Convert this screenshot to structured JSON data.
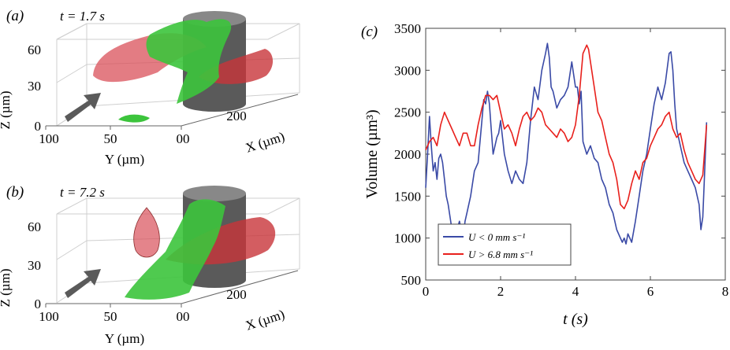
{
  "panel_a": {
    "label": "(a)",
    "time": "t = 1.7 s"
  },
  "panel_b": {
    "label": "(b)",
    "time": "t = 7.2 s"
  },
  "panel_c": {
    "label": "(c)"
  },
  "axes3d": {
    "z_label": "Z (µm)",
    "y_label": "Y (µm)",
    "x_label": "X (µm)",
    "z_ticks": [
      "0",
      "30",
      "60"
    ],
    "y_ticks": [
      "100",
      "50",
      "00"
    ],
    "x_ticks": [
      "200"
    ]
  },
  "colors": {
    "blue": "#3a4aa6",
    "red": "#e8201c",
    "green": "#3cc43c",
    "red_surface": "#d9505a",
    "cylinder": "#555555"
  },
  "chart_data": {
    "type": "line",
    "xlabel": "t (s)",
    "ylabel": "Volume (µm³)",
    "xlim": [
      0,
      8
    ],
    "ylim": [
      500,
      3500
    ],
    "xticks": [
      0,
      2,
      4,
      6,
      8
    ],
    "yticks": [
      500,
      1000,
      1500,
      2000,
      2500,
      3000,
      3500
    ],
    "legend_position": "bottom-left",
    "series": [
      {
        "name": "U < 0 mm s⁻¹",
        "color": "#3a4aa6",
        "x": [
          0,
          0.05,
          0.1,
          0.15,
          0.2,
          0.25,
          0.3,
          0.35,
          0.4,
          0.45,
          0.5,
          0.55,
          0.6,
          0.7,
          0.8,
          0.9,
          1.0,
          1.05,
          1.1,
          1.2,
          1.3,
          1.4,
          1.5,
          1.55,
          1.6,
          1.65,
          1.7,
          1.75,
          1.8,
          1.85,
          1.9,
          1.95,
          2.0,
          2.1,
          2.2,
          2.3,
          2.4,
          2.5,
          2.6,
          2.7,
          2.8,
          2.9,
          3.0,
          3.1,
          3.2,
          3.25,
          3.3,
          3.35,
          3.4,
          3.5,
          3.6,
          3.7,
          3.8,
          3.9,
          4.0,
          4.05,
          4.1,
          4.15,
          4.2,
          4.3,
          4.4,
          4.5,
          4.6,
          4.7,
          4.8,
          4.9,
          5.0,
          5.1,
          5.2,
          5.25,
          5.3,
          5.35,
          5.4,
          5.5,
          5.6,
          5.7,
          5.8,
          5.9,
          6.0,
          6.1,
          6.2,
          6.3,
          6.4,
          6.5,
          6.55,
          6.6,
          6.65,
          6.7,
          6.8,
          6.9,
          7.0,
          7.1,
          7.2,
          7.3,
          7.35,
          7.4,
          7.45,
          7.5
        ],
        "y": [
          1600,
          2000,
          2450,
          2100,
          1800,
          1900,
          1700,
          1950,
          2000,
          1900,
          1700,
          1500,
          1400,
          1100,
          1050,
          1200,
          1000,
          1200,
          1300,
          1500,
          1800,
          1900,
          2400,
          2650,
          2600,
          2750,
          2600,
          2300,
          2000,
          2100,
          2200,
          2250,
          2400,
          2000,
          1800,
          1650,
          1800,
          1700,
          1650,
          1900,
          2400,
          2800,
          2650,
          3000,
          3200,
          3320,
          3150,
          2800,
          2750,
          2550,
          2650,
          2700,
          2800,
          3100,
          2800,
          2800,
          2600,
          2750,
          2150,
          2000,
          2100,
          1950,
          1900,
          1700,
          1600,
          1400,
          1300,
          1100,
          1000,
          950,
          1000,
          930,
          1050,
          950,
          1200,
          1500,
          1800,
          2000,
          2300,
          2600,
          2800,
          2650,
          2850,
          3200,
          3220,
          3000,
          2600,
          2300,
          2100,
          1900,
          1800,
          1700,
          1600,
          1400,
          1100,
          1250,
          1800,
          2380
        ]
      },
      {
        "name": "U > 6.8 mm s⁻¹",
        "color": "#e8201c",
        "x": [
          0,
          0.1,
          0.2,
          0.3,
          0.4,
          0.5,
          0.6,
          0.7,
          0.8,
          0.9,
          1.0,
          1.1,
          1.2,
          1.3,
          1.4,
          1.5,
          1.6,
          1.7,
          1.8,
          1.9,
          2.0,
          2.1,
          2.2,
          2.3,
          2.4,
          2.5,
          2.6,
          2.7,
          2.8,
          2.9,
          3.0,
          3.1,
          3.2,
          3.3,
          3.4,
          3.5,
          3.6,
          3.7,
          3.8,
          3.9,
          4.0,
          4.1,
          4.2,
          4.3,
          4.35,
          4.4,
          4.5,
          4.6,
          4.7,
          4.8,
          4.9,
          5.0,
          5.1,
          5.2,
          5.3,
          5.4,
          5.5,
          5.6,
          5.7,
          5.8,
          5.9,
          6.0,
          6.1,
          6.2,
          6.3,
          6.4,
          6.5,
          6.6,
          6.7,
          6.8,
          6.9,
          7.0,
          7.1,
          7.2,
          7.3,
          7.4,
          7.5
        ],
        "y": [
          2050,
          2150,
          2200,
          2100,
          2350,
          2500,
          2400,
          2300,
          2200,
          2100,
          2250,
          2250,
          2100,
          2100,
          2350,
          2550,
          2700,
          2700,
          2650,
          2700,
          2500,
          2300,
          2350,
          2250,
          2100,
          2300,
          2450,
          2500,
          2400,
          2450,
          2550,
          2500,
          2350,
          2300,
          2250,
          2200,
          2300,
          2250,
          2150,
          2200,
          2350,
          2700,
          3200,
          3300,
          3250,
          3100,
          2800,
          2500,
          2400,
          2200,
          2000,
          1900,
          1700,
          1400,
          1350,
          1450,
          1650,
          1800,
          1700,
          1900,
          1950,
          2100,
          2200,
          2300,
          2350,
          2450,
          2500,
          2300,
          2200,
          2250,
          2050,
          1900,
          1800,
          1700,
          1650,
          1750,
          2350
        ]
      }
    ]
  }
}
